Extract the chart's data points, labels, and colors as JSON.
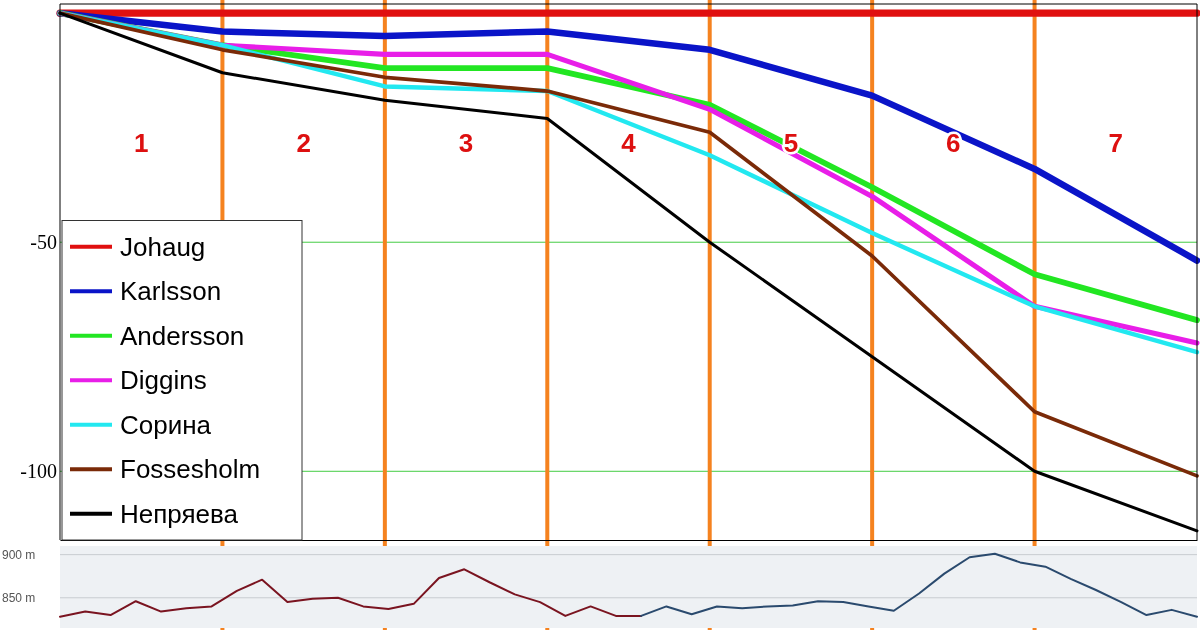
{
  "chart_data": [
    {
      "type": "line",
      "categories": [
        null,
        null,
        null,
        null,
        null,
        null,
        null,
        null
      ],
      "ylim": [
        -115,
        2
      ],
      "yticks": [
        -50,
        -100
      ],
      "grid": true,
      "legend": "bottom left",
      "tick_labels": "y",
      "series": [
        {
          "name": "Johaug",
          "color": "#e01010",
          "values": [
            0,
            0,
            0,
            0,
            0,
            0,
            0,
            0
          ]
        },
        {
          "name": "Karlsson",
          "color": "#0a14c8",
          "values": [
            0,
            -4,
            -5,
            -4,
            -8,
            -18,
            -34,
            -54
          ]
        },
        {
          "name": "Andersson",
          "color": "#22e622",
          "values": [
            0,
            -7,
            -12,
            -12,
            -20,
            -38,
            -57,
            -67
          ]
        },
        {
          "name": "Diggins",
          "color": "#e81ee8",
          "values": [
            0,
            -7,
            -9,
            -9,
            -21,
            -40,
            -64,
            -72
          ]
        },
        {
          "name": "Сорина",
          "color": "#22e8f0",
          "values": [
            0,
            -7,
            -16,
            -17,
            -31,
            -48,
            -64,
            -74
          ]
        },
        {
          "name": "Fossesholm",
          "color": "#7a2a08",
          "values": [
            0,
            -8,
            -14,
            -17,
            -26,
            -53,
            -87,
            -101
          ]
        },
        {
          "name": "Непряева",
          "color": "#000000",
          "values": [
            0,
            -13,
            -19,
            -23,
            -50,
            -75,
            -100,
            -113
          ]
        }
      ],
      "annotations": [
        "1",
        "2",
        "3",
        "4",
        "5",
        "6",
        "7"
      ]
    },
    {
      "type": "line",
      "categories": [
        null,
        null,
        null,
        null,
        null,
        null,
        null,
        null,
        null,
        null,
        null,
        null,
        null,
        null,
        null,
        null,
        null,
        null,
        null,
        null,
        null,
        null,
        null,
        null,
        null,
        null,
        null,
        null,
        null,
        null,
        null,
        null,
        null,
        null,
        null,
        null,
        null,
        null,
        null,
        null,
        null,
        null,
        null,
        null,
        null,
        null
      ],
      "ylim": [
        815,
        910
      ],
      "yticks": [
        {
          "value": 850,
          "label": "850 m"
        },
        {
          "value": 900,
          "label": "900 m"
        }
      ],
      "grid": "y",
      "tick_labels": "y",
      "series": [
        {
          "color": "#7a1420",
          "values": [
            828,
            834,
            830,
            846,
            834,
            838,
            840,
            858,
            871,
            845,
            849,
            850,
            840,
            837,
            843,
            873,
            883,
            868,
            854,
            845,
            829,
            840,
            829,
            829,
            null,
            null,
            null,
            null,
            null,
            null,
            null,
            null,
            null,
            null,
            null,
            null,
            null,
            null,
            null,
            null,
            null,
            null,
            null,
            null,
            null,
            null
          ]
        },
        {
          "color": "#2a4a6e",
          "values": [
            null,
            null,
            null,
            null,
            null,
            null,
            null,
            null,
            null,
            null,
            null,
            null,
            null,
            null,
            null,
            null,
            null,
            null,
            null,
            null,
            null,
            null,
            null,
            829,
            840,
            831,
            840,
            838,
            840,
            841,
            846,
            845,
            840,
            835,
            855,
            878,
            897,
            901,
            891,
            886,
            872,
            859,
            845,
            830,
            836,
            828
          ]
        }
      ]
    }
  ]
}
